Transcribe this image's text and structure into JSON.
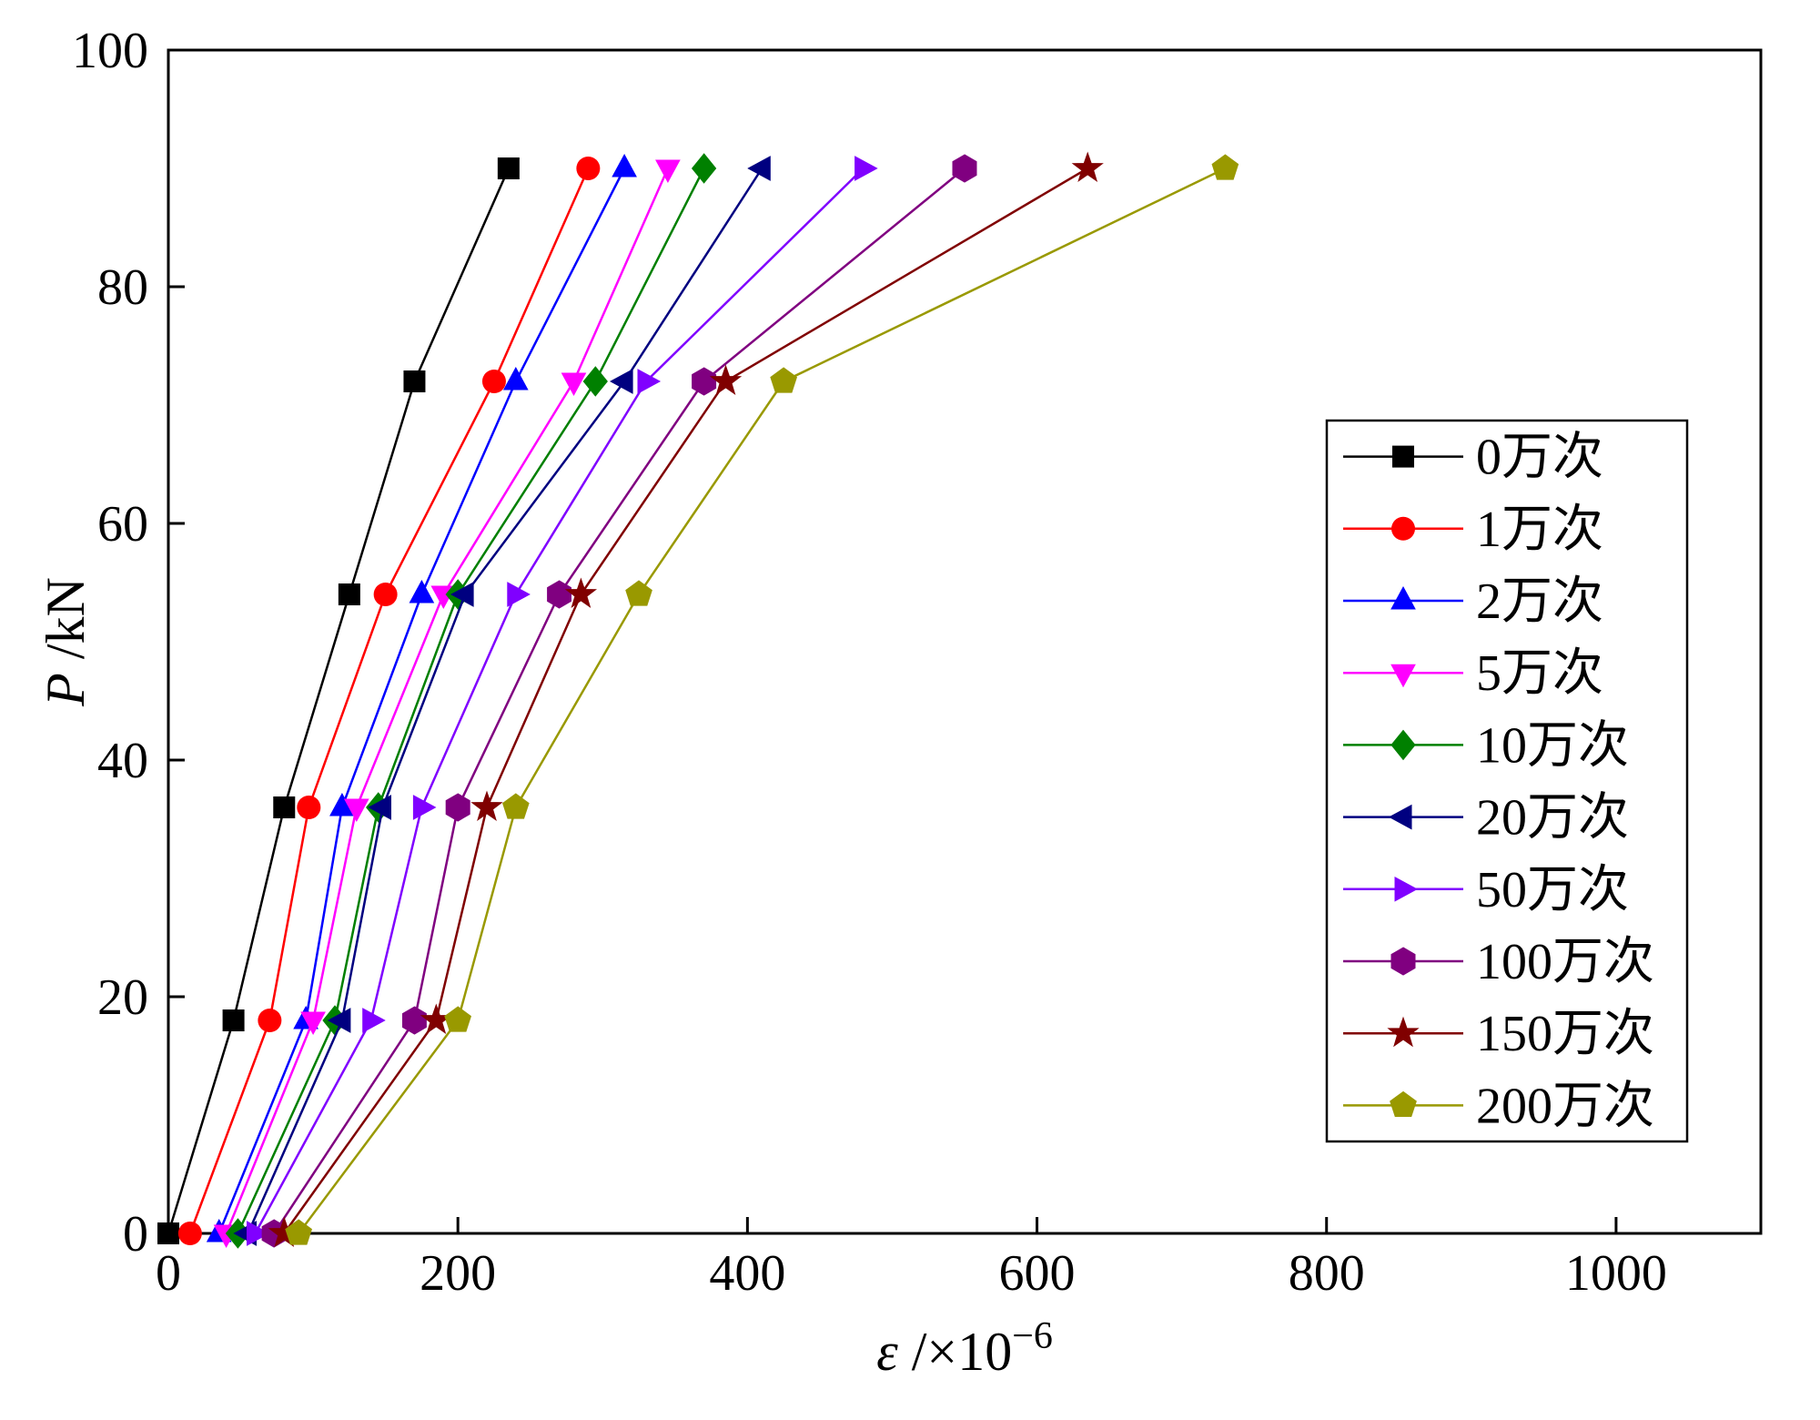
{
  "figure": {
    "background": "#ffffff",
    "axis_color": "#000000"
  },
  "chart_data": {
    "type": "line",
    "title": "",
    "xlabel": "ε /×10−6",
    "xlabel_parts": {
      "var": "ε",
      "rest": " /×10",
      "sup": "−6"
    },
    "ylabel": "P /kN",
    "ylabel_parts": {
      "var": "P",
      "rest": " /kN"
    },
    "xlim": [
      0,
      1100
    ],
    "ylim": [
      0,
      100
    ],
    "xtick_values": [
      0,
      200,
      400,
      600,
      800,
      1000
    ],
    "xtick_labels": [
      "0",
      "200",
      "400",
      "600",
      "800",
      "1000"
    ],
    "ytick_values": [
      0,
      20,
      40,
      60,
      80,
      100
    ],
    "ytick_labels": [
      "0",
      "20",
      "40",
      "60",
      "80",
      "100"
    ],
    "grid": false,
    "legend": {
      "position": "right-middle",
      "border_color": "#000000",
      "background": "#ffffff"
    },
    "series": [
      {
        "name": "0万次",
        "color": "#000000",
        "marker": "square",
        "points": [
          [
            0,
            0
          ],
          [
            45,
            18
          ],
          [
            80,
            36
          ],
          [
            125,
            54
          ],
          [
            170,
            72
          ],
          [
            235,
            90
          ]
        ]
      },
      {
        "name": "1万次",
        "color": "#ff0000",
        "marker": "circle",
        "points": [
          [
            15,
            0
          ],
          [
            70,
            18
          ],
          [
            97,
            36
          ],
          [
            150,
            54
          ],
          [
            225,
            72
          ],
          [
            290,
            90
          ]
        ]
      },
      {
        "name": "2万次",
        "color": "#0000ff",
        "marker": "triangle-up",
        "points": [
          [
            35,
            0
          ],
          [
            95,
            18
          ],
          [
            120,
            36
          ],
          [
            175,
            54
          ],
          [
            240,
            72
          ],
          [
            315,
            90
          ]
        ]
      },
      {
        "name": "5万次",
        "color": "#ff00ff",
        "marker": "triangle-down",
        "points": [
          [
            40,
            0
          ],
          [
            100,
            18
          ],
          [
            130,
            36
          ],
          [
            190,
            54
          ],
          [
            280,
            72
          ],
          [
            345,
            90
          ]
        ]
      },
      {
        "name": "10万次",
        "color": "#008000",
        "marker": "diamond",
        "points": [
          [
            48,
            0
          ],
          [
            115,
            18
          ],
          [
            145,
            36
          ],
          [
            200,
            54
          ],
          [
            295,
            72
          ],
          [
            370,
            90
          ]
        ]
      },
      {
        "name": "20万次",
        "color": "#000080",
        "marker": "triangle-left",
        "points": [
          [
            55,
            0
          ],
          [
            120,
            18
          ],
          [
            148,
            36
          ],
          [
            205,
            54
          ],
          [
            315,
            72
          ],
          [
            410,
            90
          ]
        ]
      },
      {
        "name": "50万次",
        "color": "#8000ff",
        "marker": "triangle-right",
        "points": [
          [
            60,
            0
          ],
          [
            140,
            18
          ],
          [
            175,
            36
          ],
          [
            240,
            54
          ],
          [
            330,
            72
          ],
          [
            480,
            90
          ]
        ]
      },
      {
        "name": "100万次",
        "color": "#800080",
        "marker": "hexagon",
        "points": [
          [
            73,
            0
          ],
          [
            170,
            18
          ],
          [
            200,
            36
          ],
          [
            270,
            54
          ],
          [
            370,
            72
          ],
          [
            550,
            90
          ]
        ]
      },
      {
        "name": "150万次",
        "color": "#800000",
        "marker": "star",
        "points": [
          [
            80,
            0
          ],
          [
            185,
            18
          ],
          [
            220,
            36
          ],
          [
            285,
            54
          ],
          [
            385,
            72
          ],
          [
            635,
            90
          ]
        ]
      },
      {
        "name": "200万次",
        "color": "#999900",
        "marker": "pentagon",
        "points": [
          [
            90,
            0
          ],
          [
            200,
            18
          ],
          [
            240,
            36
          ],
          [
            325,
            54
          ],
          [
            425,
            72
          ],
          [
            730,
            90
          ]
        ]
      }
    ]
  }
}
